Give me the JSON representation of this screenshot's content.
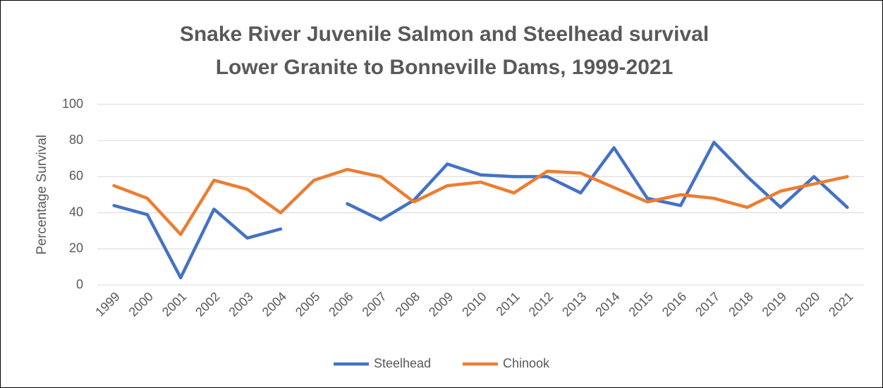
{
  "chart_data": {
    "type": "line",
    "title": [
      "Snake River Juvenile Salmon and Steelhead survival",
      "Lower Granite to Bonneville Dams, 1999-2021"
    ],
    "y_label": "Percentage Survival",
    "categories": [
      "1999",
      "2000",
      "2001",
      "2002",
      "2003",
      "2004",
      "2005",
      "2006",
      "2007",
      "2008",
      "2009",
      "2010",
      "2011",
      "2012",
      "2013",
      "2014",
      "2015",
      "2016",
      "2017",
      "2018",
      "2019",
      "2020",
      "2021"
    ],
    "series": [
      {
        "name": "Steelhead",
        "color": "#4472c4",
        "values": [
          44,
          39,
          4,
          42,
          26,
          31,
          null,
          45,
          36,
          47,
          67,
          61,
          60,
          60,
          51,
          76,
          48,
          44,
          79,
          60,
          43,
          60,
          43
        ]
      },
      {
        "name": "Chinook",
        "color": "#ed7d31",
        "values": [
          55,
          48,
          28,
          58,
          53,
          40,
          58,
          64,
          60,
          46,
          55,
          57,
          51,
          63,
          62,
          54,
          46,
          50,
          48,
          43,
          52,
          56,
          60
        ]
      }
    ],
    "ylim": [
      0,
      100
    ],
    "yticks": [
      0,
      20,
      40,
      60,
      80,
      100
    ],
    "grid": true,
    "legend": "bottom"
  }
}
